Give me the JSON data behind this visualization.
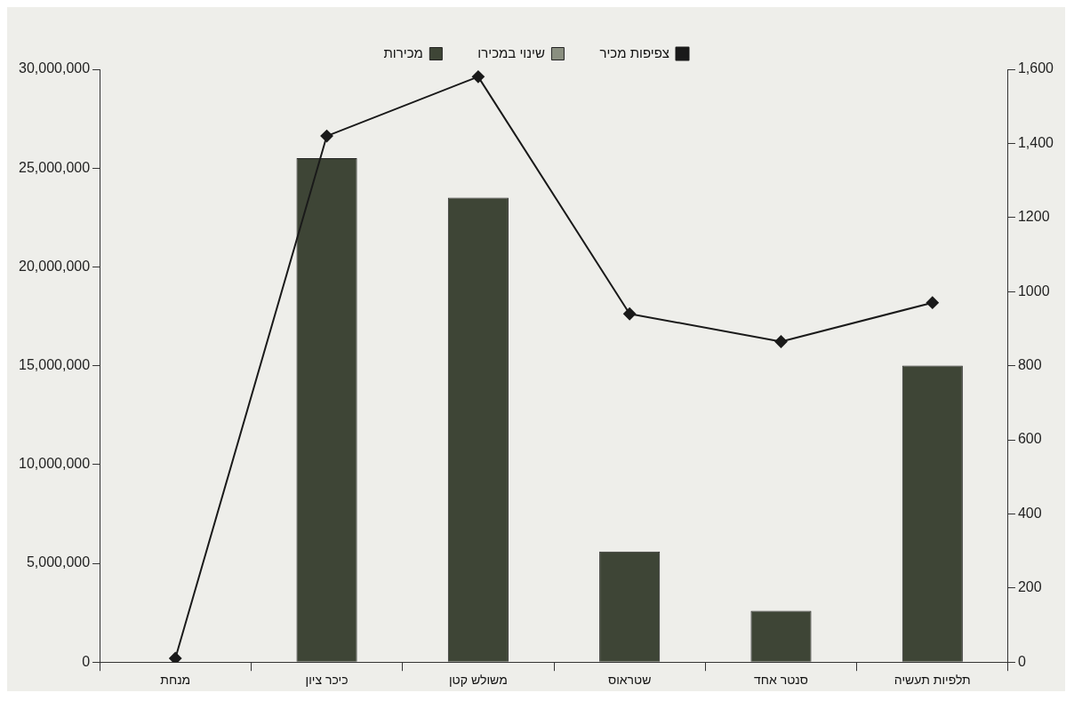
{
  "chart_data": {
    "type": "bar",
    "categories": [
      "מנחת",
      "כיכר ציון",
      "משולש קטן",
      "שטראוס",
      "סנטר אחד",
      "תלפיות תעשיה"
    ],
    "series": [
      {
        "name": "צפיפות מכיר",
        "type": "line",
        "axis": "y2",
        "color": "#1a1a1a",
        "marker": "diamond",
        "values": [
          10,
          1420,
          1580,
          940,
          865,
          970
        ]
      },
      {
        "name": "שינוי במכירו",
        "type": "bar",
        "color": "#8a8f80",
        "values": [
          null,
          null,
          null,
          null,
          null,
          null
        ]
      },
      {
        "name": "מכירות",
        "color": "#3e4536",
        "values": [
          0,
          25500000,
          23500000,
          5600000,
          2600000,
          15000000
        ]
      }
    ],
    "ylim": [
      0,
      30000000
    ],
    "yticks": [
      {
        "value": 0,
        "label": "0"
      },
      {
        "value": 5000000,
        "label": "5,000,000"
      },
      {
        "value": 10000000,
        "label": "10,000,000"
      },
      {
        "value": 15000000,
        "label": "15,000,000"
      },
      {
        "value": 20000000,
        "label": "20,000,000"
      },
      {
        "value": 25000000,
        "label": "25,000,000"
      },
      {
        "value": 30000000,
        "label": "30,000,000"
      }
    ],
    "y2lim": [
      0,
      1600
    ],
    "y2ticks": [
      0,
      200,
      400,
      600,
      800,
      1000,
      1200,
      {
        "value": 1400,
        "label": "1,400"
      },
      {
        "value": 1600,
        "label": "1,600"
      }
    ],
    "grid": false,
    "legend": "top"
  }
}
